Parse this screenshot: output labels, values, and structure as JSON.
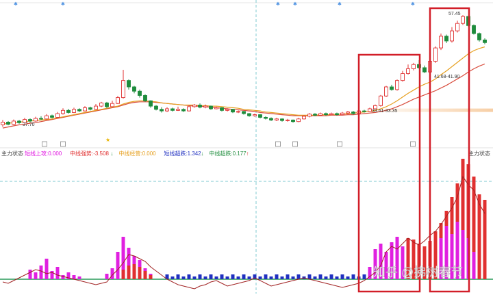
{
  "chart_data": [
    {
      "type": "candlestick",
      "panel": "price",
      "colors": {
        "up": "#e03030",
        "down": "#1e8c3c",
        "ma_fast": "#e6a020",
        "ma_slow": "#d84a3a",
        "band": "#f7cfa6"
      },
      "annotations": {
        "high_label": "57.45",
        "first_low_label": "37.70",
        "breakout_label": "33.61-33.35",
        "second_label": "41.68-41.90"
      },
      "candles": [
        [
          36.9,
          37.4,
          36.5,
          37.8
        ],
        [
          37.4,
          37.0,
          36.8,
          37.6
        ],
        [
          37.0,
          37.6,
          36.9,
          37.9
        ],
        [
          37.6,
          37.3,
          37.1,
          37.8
        ],
        [
          37.3,
          37.9,
          37.2,
          38.2
        ],
        [
          37.9,
          37.6,
          37.4,
          38.1
        ],
        [
          37.6,
          38.1,
          37.5,
          38.4
        ],
        [
          38.1,
          38.0,
          37.8,
          38.5
        ],
        [
          38.0,
          38.6,
          37.9,
          38.9
        ],
        [
          38.6,
          38.3,
          38.1,
          38.8
        ],
        [
          38.3,
          39.0,
          38.2,
          39.3
        ],
        [
          39.0,
          39.6,
          38.8,
          40.0
        ],
        [
          39.6,
          39.2,
          39.0,
          39.9
        ],
        [
          39.2,
          39.8,
          39.1,
          40.1
        ],
        [
          39.8,
          39.5,
          39.3,
          40.0
        ],
        [
          39.5,
          40.1,
          39.4,
          40.4
        ],
        [
          40.1,
          39.8,
          39.6,
          40.3
        ],
        [
          39.8,
          40.4,
          39.7,
          40.8
        ],
        [
          40.4,
          41.0,
          40.2,
          41.2
        ],
        [
          41.0,
          40.3,
          40.0,
          41.2
        ],
        [
          40.3,
          40.9,
          40.2,
          41.4
        ],
        [
          40.9,
          42.0,
          40.8,
          42.3
        ],
        [
          42.0,
          45.2,
          41.8,
          47.2
        ],
        [
          45.2,
          44.0,
          43.5,
          45.4
        ],
        [
          44.0,
          43.2,
          42.8,
          44.2
        ],
        [
          43.2,
          42.4,
          42.0,
          43.5
        ],
        [
          42.4,
          41.4,
          41.2,
          42.6
        ],
        [
          41.4,
          40.4,
          40.1,
          41.5
        ],
        [
          40.4,
          39.8,
          39.6,
          40.6
        ],
        [
          39.8,
          39.5,
          39.2,
          40.2
        ],
        [
          39.5,
          39.9,
          39.3,
          40.2
        ],
        [
          39.9,
          39.6,
          39.4,
          40.1
        ],
        [
          39.6,
          39.8,
          39.5,
          40.3
        ],
        [
          39.8,
          39.5,
          39.3,
          40.0
        ],
        [
          39.5,
          40.3,
          39.4,
          40.5
        ],
        [
          40.3,
          40.6,
          40.1,
          40.8
        ],
        [
          40.6,
          40.2,
          40.0,
          40.9
        ],
        [
          40.2,
          40.4,
          40.0,
          40.7
        ],
        [
          40.4,
          39.9,
          39.7,
          40.5
        ],
        [
          39.9,
          40.1,
          39.8,
          40.3
        ],
        [
          40.1,
          39.6,
          39.4,
          40.2
        ],
        [
          39.6,
          39.8,
          39.4,
          40.0
        ],
        [
          39.8,
          39.3,
          39.1,
          39.9
        ],
        [
          39.3,
          39.4,
          39.1,
          39.6
        ],
        [
          39.4,
          39.0,
          38.8,
          39.5
        ],
        [
          39.0,
          38.6,
          38.4,
          39.1
        ],
        [
          38.6,
          38.8,
          38.4,
          39.0
        ],
        [
          38.8,
          38.3,
          38.1,
          38.9
        ],
        [
          38.3,
          38.1,
          37.9,
          38.5
        ],
        [
          38.1,
          37.8,
          37.6,
          38.3
        ],
        [
          37.8,
          38.0,
          37.6,
          38.2
        ],
        [
          38.0,
          37.7,
          37.5,
          38.1
        ],
        [
          37.7,
          37.8,
          37.5,
          38.0
        ],
        [
          37.8,
          37.5,
          37.3,
          37.9
        ],
        [
          37.5,
          38.0,
          37.4,
          38.2
        ],
        [
          38.0,
          38.5,
          37.9,
          38.7
        ],
        [
          38.5,
          38.9,
          38.3,
          39.1
        ],
        [
          38.9,
          38.7,
          38.5,
          39.1
        ],
        [
          38.7,
          39.0,
          38.6,
          39.2
        ],
        [
          39.0,
          38.8,
          38.6,
          39.2
        ],
        [
          38.8,
          39.0,
          38.7,
          39.2
        ],
        [
          39.0,
          38.8,
          38.6,
          39.2
        ],
        [
          38.8,
          39.1,
          38.7,
          39.3
        ],
        [
          39.1,
          39.3,
          38.9,
          39.5
        ],
        [
          39.3,
          39.0,
          38.8,
          39.5
        ],
        [
          39.0,
          39.5,
          38.9,
          39.7
        ],
        [
          39.5,
          39.4,
          39.2,
          39.7
        ],
        [
          39.4,
          39.9,
          39.3,
          40.1
        ],
        [
          39.9,
          40.5,
          39.8,
          40.7
        ],
        [
          40.5,
          42.3,
          40.3,
          42.5
        ],
        [
          42.3,
          44.0,
          42.1,
          44.2
        ],
        [
          44.0,
          43.5,
          43.3,
          44.4
        ],
        [
          43.5,
          45.2,
          43.3,
          45.4
        ],
        [
          45.2,
          46.5,
          45.0,
          47.0
        ],
        [
          46.5,
          47.4,
          46.3,
          48.2
        ],
        [
          47.4,
          48.2,
          47.1,
          48.5
        ],
        [
          48.2,
          47.6,
          47.4,
          49.0
        ],
        [
          47.6,
          46.8,
          46.6,
          48.0
        ],
        [
          46.8,
          48.8,
          46.6,
          49.0
        ],
        [
          48.8,
          51.3,
          48.5,
          51.6
        ],
        [
          51.3,
          53.5,
          50.9,
          54.0
        ],
        [
          53.5,
          52.6,
          52.2,
          53.8
        ],
        [
          52.6,
          54.5,
          52.3,
          55.2
        ],
        [
          54.5,
          55.9,
          54.2,
          56.4
        ],
        [
          55.9,
          57.2,
          55.6,
          57.45
        ],
        [
          57.2,
          55.5,
          55.3,
          57.3
        ],
        [
          55.5,
          54.0,
          53.8,
          55.7
        ],
        [
          54.0,
          52.8,
          52.5,
          54.2
        ],
        [
          52.8,
          52.3,
          52.0,
          53.1
        ]
      ],
      "ma_fast": [
        37.0,
        37.2,
        37.3,
        37.4,
        37.5,
        37.6,
        37.7,
        37.8,
        37.9,
        38.0,
        38.2,
        38.4,
        38.6,
        38.8,
        39.0,
        39.2,
        39.4,
        39.6,
        39.8,
        40.0,
        40.2,
        40.4,
        40.8,
        41.1,
        41.3,
        41.4,
        41.4,
        41.3,
        41.2,
        41.0,
        40.9,
        40.8,
        40.7,
        40.6,
        40.6,
        40.6,
        40.5,
        40.5,
        40.4,
        40.4,
        40.3,
        40.2,
        40.1,
        40.0,
        39.8,
        39.7,
        39.6,
        39.5,
        39.3,
        39.2,
        39.1,
        39.0,
        38.9,
        38.8,
        38.7,
        38.7,
        38.7,
        38.7,
        38.8,
        38.8,
        38.8,
        38.9,
        38.9,
        39.0,
        39.1,
        39.2,
        39.3,
        39.4,
        39.6,
        39.9,
        40.3,
        40.8,
        41.4,
        42.1,
        42.8,
        43.4,
        44.0,
        44.5,
        44.9,
        45.5,
        46.3,
        47.0,
        47.8,
        48.6,
        49.4,
        50.2,
        50.8,
        51.2,
        51.5
      ],
      "ma_slow": [
        36.3,
        36.5,
        36.7,
        36.9,
        37.0,
        37.2,
        37.3,
        37.5,
        37.7,
        37.9,
        38.1,
        38.3,
        38.5,
        38.7,
        38.9,
        39.1,
        39.3,
        39.5,
        39.7,
        39.9,
        40.1,
        40.3,
        40.6,
        40.9,
        41.1,
        41.2,
        41.2,
        41.2,
        41.1,
        41.0,
        40.9,
        40.8,
        40.7,
        40.6,
        40.5,
        40.4,
        40.4,
        40.3,
        40.2,
        40.1,
        40.0,
        39.9,
        39.8,
        39.7,
        39.6,
        39.5,
        39.4,
        39.2,
        39.1,
        39.0,
        38.9,
        38.8,
        38.7,
        38.6,
        38.6,
        38.6,
        38.6,
        38.6,
        38.6,
        38.6,
        38.7,
        38.7,
        38.7,
        38.8,
        38.8,
        38.9,
        39.0,
        39.1,
        39.2,
        39.4,
        39.6,
        39.9,
        40.3,
        40.7,
        41.2,
        41.7,
        42.1,
        42.5,
        42.9,
        43.3,
        43.8,
        44.3,
        44.9,
        45.5,
        46.1,
        46.8,
        47.4,
        47.9,
        48.3
      ],
      "ylim": [
        34,
        59
      ]
    },
    {
      "type": "bar",
      "panel": "indicator",
      "title": "主力状态",
      "legend": [
        {
          "label": "短线上攻:0.000",
          "color": "#e010e0",
          "arrow": ""
        },
        {
          "label": "中线强势:-3.508",
          "color": "#e03030",
          "arrow": "↓"
        },
        {
          "label": "中线经营:0.000",
          "color": "#e6a020",
          "arrow": ""
        },
        {
          "label": "短线超跌:1.342",
          "color": "#2030c0",
          "arrow": "↓"
        },
        {
          "label": "中线超跌:0.177",
          "color": "#1e8c3c",
          "arrow": "↑"
        }
      ],
      "right_label": "主力状态",
      "magenta": [
        0,
        0,
        0,
        0,
        0,
        0,
        0,
        0,
        0,
        0,
        0,
        0,
        0,
        0,
        0,
        0,
        0,
        0,
        0,
        0,
        0,
        0,
        0,
        0,
        0,
        0,
        0,
        0,
        0,
        0,
        0,
        0,
        0,
        0,
        0,
        0,
        0,
        0,
        0,
        0,
        0,
        0,
        0,
        0,
        0,
        0,
        0,
        0,
        0,
        0,
        0,
        0,
        0,
        0,
        0,
        0,
        0,
        0,
        0,
        0,
        0,
        0,
        0,
        0,
        0,
        0,
        0,
        0,
        0,
        0,
        0,
        0,
        0,
        0,
        0,
        0,
        0,
        0,
        0,
        0,
        0,
        0,
        0,
        0,
        0,
        0,
        0,
        0,
        0
      ],
      "ylim": [
        -15,
        100
      ]
    }
  ],
  "watermark": "知乎 @拂树春节"
}
